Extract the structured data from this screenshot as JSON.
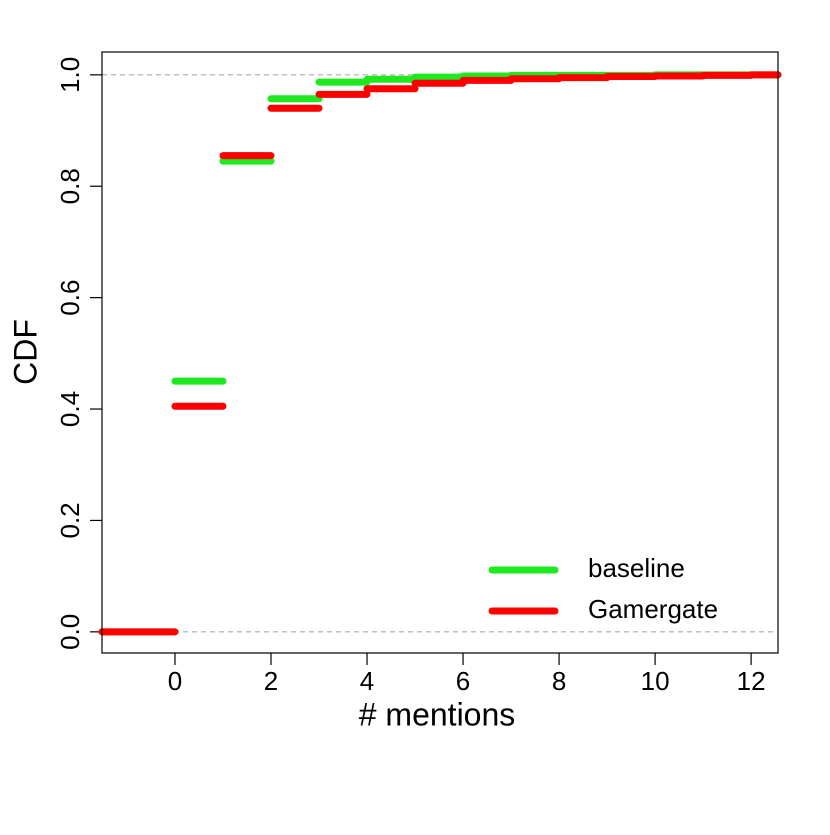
{
  "chart_data": {
    "type": "step",
    "x_label": "# mentions",
    "y_label": "CDF",
    "xlim": [
      -1.52,
      12.56
    ],
    "ylim": [
      -0.038,
      1.041
    ],
    "xticks": [
      0,
      2,
      4,
      6,
      8,
      10,
      12
    ],
    "yticks": [
      {
        "value": 0,
        "label": "0.0"
      },
      {
        "value": 0.2,
        "label": "0.2"
      },
      {
        "value": 0.4,
        "label": "0.4"
      },
      {
        "value": 0.6,
        "label": "0.6"
      },
      {
        "value": 0.8,
        "label": "0.8"
      },
      {
        "value": 1,
        "label": "1.0"
      }
    ],
    "hlines": [
      0,
      1
    ],
    "legend": "bottom-right",
    "series": [
      {
        "name": "baseline",
        "color": "#1ee81e",
        "x": [
          -1.52,
          0,
          1,
          2,
          3,
          4,
          5,
          6,
          7,
          8,
          9,
          10,
          11,
          12
        ],
        "values": [
          0,
          0.45,
          0.845,
          0.957,
          0.987,
          0.992,
          0.996,
          0.998,
          0.999,
          0.999,
          0.999,
          1,
          1,
          1
        ]
      },
      {
        "name": "Gamergate",
        "color": "#ff0000",
        "x": [
          -1.52,
          0,
          1,
          2,
          3,
          4,
          5,
          6,
          7,
          8,
          9,
          10,
          11,
          12
        ],
        "values": [
          0,
          0.405,
          0.855,
          0.94,
          0.965,
          0.975,
          0.985,
          0.99,
          0.993,
          0.995,
          0.997,
          0.998,
          0.999,
          1
        ]
      }
    ]
  }
}
